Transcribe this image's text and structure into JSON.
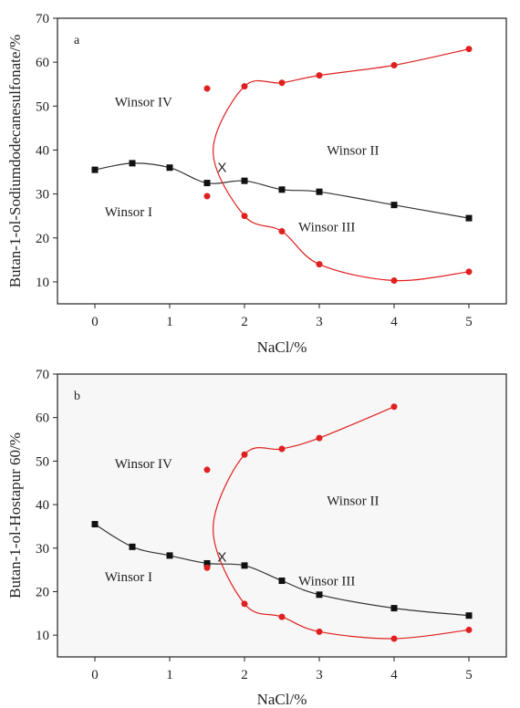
{
  "chart_data": [
    {
      "type": "scatter",
      "panel_label": "a",
      "xlabel": "NaCl/%",
      "ylabel": "Butan-1-ol-Sodiumdodecanesulfonate/%",
      "xlim": [
        -0.5,
        5.5
      ],
      "ylim": [
        5,
        70
      ],
      "xticks": [
        "0",
        "1",
        "2",
        "3",
        "4",
        "5"
      ],
      "yticks": [
        "10",
        "20",
        "30",
        "40",
        "50",
        "60",
        "70"
      ],
      "x_tick_values": [
        0,
        1,
        2,
        3,
        4,
        5
      ],
      "y_tick_values": [
        10,
        20,
        30,
        40,
        50,
        60,
        70
      ],
      "grid": false,
      "series": [
        {
          "color": "#000000",
          "marker": "square",
          "x": [
            0,
            0.5,
            1,
            1.5,
            2,
            2.5,
            3,
            4,
            5
          ],
          "y": [
            35.5,
            37,
            36,
            32.5,
            33,
            31,
            30.5,
            27.5,
            24.5
          ]
        },
        {
          "color": "#e02020",
          "marker": "circle",
          "x": [
            1.5,
            2,
            2.5,
            3,
            4,
            5
          ],
          "y": [
            54,
            54.5,
            55.3,
            57,
            59.3,
            63
          ]
        },
        {
          "color": "#e02020",
          "marker": "circle",
          "x": [
            1.5,
            2,
            2.5,
            3,
            4,
            5
          ],
          "y": [
            29.5,
            25,
            21.5,
            14,
            10.3,
            12.3
          ]
        }
      ],
      "annotations": [
        {
          "text": "Winsor IV",
          "x": 0.65,
          "y": 51
        },
        {
          "text": "Winsor II",
          "x": 3.45,
          "y": 40
        },
        {
          "text": "Winsor I",
          "x": 0.45,
          "y": 26
        },
        {
          "text": "Winsor III",
          "x": 3.1,
          "y": 22.5
        },
        {
          "text": "X",
          "x": 1.7,
          "y": 36
        }
      ]
    },
    {
      "type": "scatter",
      "panel_label": "b",
      "xlabel": "NaCl/%",
      "ylabel": "Butan-1-ol-Hostapur 60/%",
      "xlim": [
        -0.5,
        5.5
      ],
      "ylim": [
        5,
        70
      ],
      "xticks": [
        "0",
        "1",
        "2",
        "3",
        "4",
        "5"
      ],
      "yticks": [
        "10",
        "20",
        "30",
        "40",
        "50",
        "60",
        "70"
      ],
      "x_tick_values": [
        0,
        1,
        2,
        3,
        4,
        5
      ],
      "y_tick_values": [
        10,
        20,
        30,
        40,
        50,
        60,
        70
      ],
      "grid": false,
      "series": [
        {
          "color": "#000000",
          "marker": "square",
          "x": [
            0,
            0.5,
            1,
            1.5,
            2,
            2.5,
            3,
            4,
            5
          ],
          "y": [
            35.5,
            30.3,
            28.3,
            26.5,
            26,
            22.5,
            19.3,
            16.2,
            14.5
          ]
        },
        {
          "color": "#e02020",
          "marker": "circle",
          "x": [
            1.5,
            2,
            2.5,
            3,
            4
          ],
          "y": [
            48,
            51.5,
            52.8,
            55.3,
            62.5
          ]
        },
        {
          "color": "#e02020",
          "marker": "circle",
          "x": [
            1.5,
            2,
            2.5,
            3,
            4,
            5
          ],
          "y": [
            25.5,
            17.2,
            14.2,
            10.8,
            9.2,
            11.2
          ]
        }
      ],
      "annotations": [
        {
          "text": "Winsor IV",
          "x": 0.65,
          "y": 49.5
        },
        {
          "text": "Winsor II",
          "x": 3.45,
          "y": 41
        },
        {
          "text": "Winsor I",
          "x": 0.45,
          "y": 23.5
        },
        {
          "text": "Winsor III",
          "x": 3.1,
          "y": 22.5
        },
        {
          "text": "X",
          "x": 1.7,
          "y": 28
        }
      ]
    }
  ]
}
